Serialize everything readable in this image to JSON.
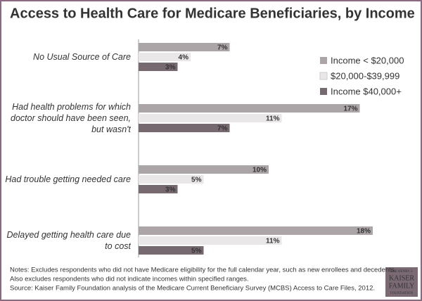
{
  "chart_data": {
    "type": "hbar",
    "title": "Access to Health Care for Medicare Beneficiaries, by Income",
    "categories": [
      "No Usual Source of Care",
      "Had health problems for which doctor should have been seen, but wasn't",
      "Had trouble getting needed care",
      "Delayed getting health care due to cost"
    ],
    "series": [
      {
        "name": "Income < $20,000",
        "color": "#aba5a8",
        "values": [
          7,
          17,
          10,
          18
        ],
        "value_labels": [
          "7%",
          "17%",
          "10%",
          "18%"
        ]
      },
      {
        "name": "$20,000-$39,999",
        "color": "#e9e7e8",
        "values": [
          4,
          11,
          5,
          11
        ],
        "value_labels": [
          "4%",
          "11%",
          "5%",
          "11%"
        ]
      },
      {
        "name": "Income $40,000+",
        "color": "#776970",
        "values": [
          3,
          7,
          3,
          5
        ],
        "value_labels": [
          "3%",
          "7%",
          "3%",
          "5%"
        ]
      }
    ],
    "legend_position": "upper right",
    "notes": [
      "Notes: Excludes respondents who did not have Medicare eligibility for the full calendar year, such as new enrollees and decedents.",
      "Also excludes respondents who did not indicate incomes within specified ranges.",
      "Source: Kaiser Family Foundation analysis of the Medicare Current Beneficiary Survey (MCBS) Access to Care Files, 2012."
    ],
    "logo": [
      "THE HENRY J.",
      "KAISER",
      "FAMILY",
      "FOUNDATION"
    ]
  }
}
